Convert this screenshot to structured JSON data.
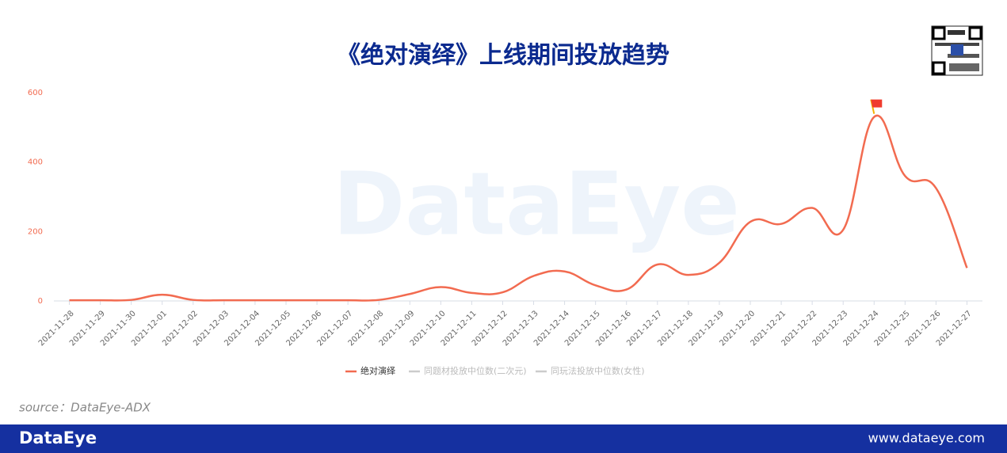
{
  "chart_data": {
    "type": "line",
    "title": "《绝对演绎》上线期间投放趋势",
    "watermark": "DataEye",
    "source": "source：DataEye-ADX",
    "brand": "DataEye",
    "website": "www.dataeye.com",
    "categories": [
      "2021-11-28",
      "2021-11-29",
      "2021-11-30",
      "2021-12-01",
      "2021-12-02",
      "2021-12-03",
      "2021-12-04",
      "2021-12-05",
      "2021-12-06",
      "2021-12-07",
      "2021-12-08",
      "2021-12-09",
      "2021-12-10",
      "2021-12-11",
      "2021-12-12",
      "2021-12-13",
      "2021-12-14",
      "2021-12-15",
      "2021-12-16",
      "2021-12-17",
      "2021-12-18",
      "2021-12-19",
      "2021-12-20",
      "2021-12-21",
      "2021-12-22",
      "2021-12-23",
      "2021-12-24",
      "2021-12-25",
      "2021-12-26",
      "2021-12-27"
    ],
    "series": [
      {
        "name": "绝对演绎",
        "color": "#f26b50",
        "values": [
          2,
          2,
          3,
          18,
          3,
          2,
          2,
          2,
          2,
          2,
          3,
          20,
          40,
          23,
          25,
          72,
          85,
          45,
          33,
          105,
          75,
          110,
          228,
          222,
          268,
          205,
          530,
          360,
          325,
          95
        ]
      },
      {
        "name": "同题材投放中位数(二次元)",
        "color": "#cccccc",
        "values": [
          null,
          null,
          null,
          null,
          null,
          null,
          null,
          null,
          null,
          null,
          null,
          null,
          null,
          null,
          null,
          null,
          null,
          null,
          null,
          null,
          null,
          null,
          null,
          null,
          null,
          null,
          null,
          null,
          null,
          null
        ]
      },
      {
        "name": "同玩法投放中位数(女性)",
        "color": "#cccccc",
        "values": [
          null,
          null,
          null,
          null,
          null,
          null,
          null,
          null,
          null,
          null,
          null,
          null,
          null,
          null,
          null,
          null,
          null,
          null,
          null,
          null,
          null,
          null,
          null,
          null,
          null,
          null,
          null,
          null,
          null,
          null
        ]
      }
    ],
    "ylim": [
      0,
      600
    ],
    "yticks": [
      0,
      200,
      400,
      600
    ],
    "grid": false
  }
}
